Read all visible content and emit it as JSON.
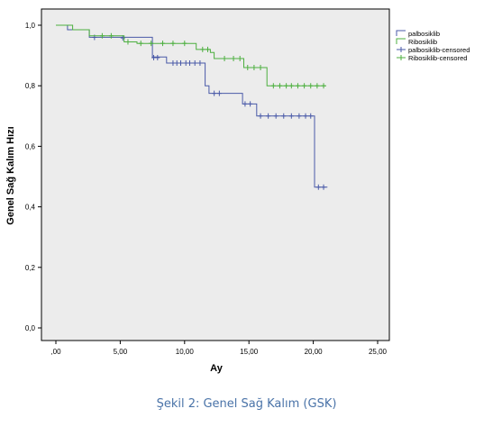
{
  "caption": "Şekil 2: Genel Sağ Kalım (GSK)",
  "chart_data": {
    "type": "line",
    "title": "",
    "xlabel": "Ay",
    "ylabel": "Genel Sağ Kalım Hızı",
    "xlim": [
      0,
      25
    ],
    "ylim": [
      0,
      1.0
    ],
    "x_ticks": [
      0,
      5,
      10,
      15,
      20,
      25
    ],
    "x_tick_labels": [
      ",00",
      "5,00",
      "10,00",
      "15,00",
      "20,00",
      "25,00"
    ],
    "y_ticks": [
      0,
      0.2,
      0.4,
      0.6,
      0.8,
      1.0
    ],
    "y_tick_labels": [
      "0,0",
      "0,2",
      "0,4",
      "0,6",
      "0,8",
      "1,0"
    ],
    "grid": false,
    "legend_position": "top-right",
    "colors": {
      "palbosiklib": "#4a5aa8",
      "ribosiklib": "#4caf3f",
      "plot_bg": "#ececec"
    },
    "series": [
      {
        "name": "palbosiklib",
        "color": "#4a5aa8",
        "steps": [
          [
            0,
            1.0
          ],
          [
            0.9,
            0.985
          ],
          [
            2.6,
            0.96
          ],
          [
            7.5,
            0.895
          ],
          [
            8.6,
            0.875
          ],
          [
            11.6,
            0.8
          ],
          [
            11.9,
            0.775
          ],
          [
            14.5,
            0.74
          ],
          [
            15.6,
            0.7
          ],
          [
            20.1,
            0.465
          ],
          [
            21.1,
            0.465
          ]
        ],
        "censored": [
          [
            3.0,
            0.96
          ],
          [
            5.2,
            0.958
          ],
          [
            7.6,
            0.893
          ],
          [
            7.9,
            0.893
          ],
          [
            9.1,
            0.875
          ],
          [
            9.4,
            0.875
          ],
          [
            9.7,
            0.875
          ],
          [
            10.1,
            0.875
          ],
          [
            10.4,
            0.875
          ],
          [
            10.8,
            0.875
          ],
          [
            11.2,
            0.875
          ],
          [
            12.3,
            0.775
          ],
          [
            12.7,
            0.775
          ],
          [
            14.7,
            0.74
          ],
          [
            15.1,
            0.74
          ],
          [
            15.9,
            0.7
          ],
          [
            16.5,
            0.7
          ],
          [
            17.1,
            0.7
          ],
          [
            17.7,
            0.7
          ],
          [
            18.3,
            0.7
          ],
          [
            18.9,
            0.7
          ],
          [
            19.4,
            0.7
          ],
          [
            19.8,
            0.7
          ],
          [
            20.4,
            0.465
          ],
          [
            20.8,
            0.465
          ]
        ]
      },
      {
        "name": "Ribosiklib",
        "color": "#4caf3f",
        "steps": [
          [
            0,
            1.0
          ],
          [
            1.3,
            0.985
          ],
          [
            2.6,
            0.965
          ],
          [
            5.3,
            0.945
          ],
          [
            6.3,
            0.94
          ],
          [
            10.9,
            0.92
          ],
          [
            12.0,
            0.91
          ],
          [
            12.3,
            0.89
          ],
          [
            14.6,
            0.86
          ],
          [
            16.4,
            0.8
          ],
          [
            21.0,
            0.8
          ]
        ],
        "censored": [
          [
            3.6,
            0.965
          ],
          [
            4.3,
            0.965
          ],
          [
            5.6,
            0.945
          ],
          [
            6.6,
            0.94
          ],
          [
            7.4,
            0.94
          ],
          [
            8.3,
            0.94
          ],
          [
            9.1,
            0.94
          ],
          [
            10.0,
            0.94
          ],
          [
            11.4,
            0.92
          ],
          [
            11.8,
            0.92
          ],
          [
            13.1,
            0.89
          ],
          [
            13.8,
            0.89
          ],
          [
            14.3,
            0.89
          ],
          [
            14.9,
            0.86
          ],
          [
            15.4,
            0.86
          ],
          [
            15.9,
            0.86
          ],
          [
            16.9,
            0.8
          ],
          [
            17.4,
            0.8
          ],
          [
            17.9,
            0.8
          ],
          [
            18.3,
            0.8
          ],
          [
            18.8,
            0.8
          ],
          [
            19.3,
            0.8
          ],
          [
            19.8,
            0.8
          ],
          [
            20.3,
            0.8
          ],
          [
            20.8,
            0.8
          ]
        ]
      }
    ],
    "legend": [
      {
        "label": "palbosiklib",
        "kind": "step",
        "color": "#4a5aa8"
      },
      {
        "label": "Ribosiklib",
        "kind": "step",
        "color": "#4caf3f"
      },
      {
        "label": "palbosiklib-censored",
        "kind": "plus",
        "color": "#4a5aa8"
      },
      {
        "label": "Ribosiklib-censored",
        "kind": "plus",
        "color": "#4caf3f"
      }
    ]
  }
}
